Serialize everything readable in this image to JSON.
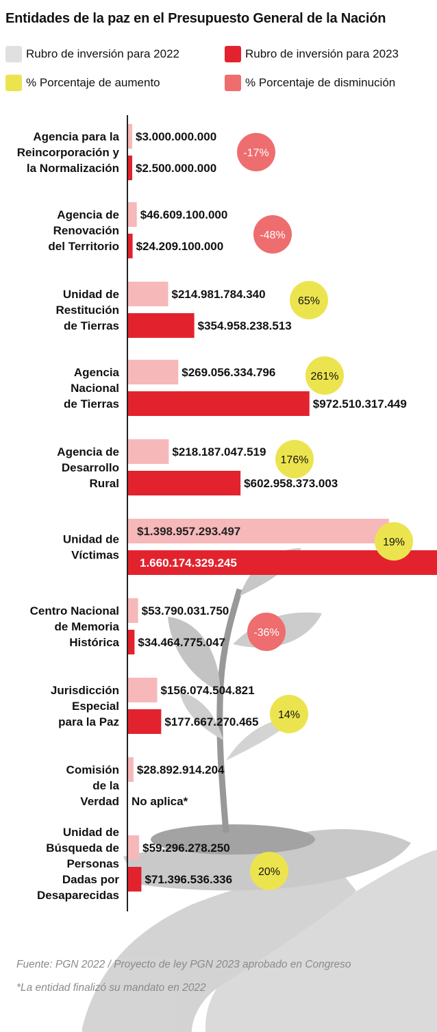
{
  "title": "Entidades de la paz en el Presupuesto General de la Nación",
  "legend": [
    {
      "label": "Rubro de inversión para 2022",
      "color": "#e0e0e0",
      "shape": "square"
    },
    {
      "label": "Rubro de inversión para 2023",
      "color": "#e2232e",
      "shape": "square"
    },
    {
      "label": "% Porcentaje de aumento",
      "color": "#ece44e",
      "shape": "square"
    },
    {
      "label": "% Porcentaje de disminución",
      "color": "#ee6d6f",
      "shape": "square"
    }
  ],
  "colors": {
    "bar_2022": "#f7b8ba",
    "bar_2023": "#e2232e",
    "increase": "#ece44e",
    "decrease": "#ee6d6f",
    "axis": "#222222"
  },
  "chart_data": {
    "type": "bar",
    "orientation": "horizontal",
    "title": "Entidades de la paz en el Presupuesto General de la Nación",
    "categories": [
      "Agencia para la Reincorporación y la Normalización",
      "Agencia de Renovación del Territorio",
      "Unidad de Restitución de Tierras",
      "Agencia Nacional de Tierras",
      "Agencia de Desarrollo Rural",
      "Unidad de Víctimas",
      "Centro Nacional de Memoria Histórica",
      "Jurisdicción Especial para la Paz",
      "Comisión de la Verdad",
      "Unidad de Búsqueda de Personas Dadas por Desaparecidas"
    ],
    "category_lines": [
      [
        "Agencia para la",
        "Reincorporación y",
        "la Normalización"
      ],
      [
        "Agencia de",
        "Renovación",
        "del Territorio"
      ],
      [
        "Unidad de",
        "Restitución",
        "de Tierras"
      ],
      [
        "Agencia",
        "Nacional",
        "de Tierras"
      ],
      [
        "Agencia de",
        "Desarrollo",
        "Rural"
      ],
      [
        "Unidad de",
        "Víctimas"
      ],
      [
        "Centro Nacional",
        "de Memoria",
        "Histórica"
      ],
      [
        "Jurisdicción",
        "Especial",
        "para la Paz"
      ],
      [
        "Comisión",
        "de la",
        "Verdad"
      ],
      [
        "Unidad de",
        "Búsqueda de",
        "Personas",
        "Dadas por",
        "Desaparecidas"
      ]
    ],
    "series": [
      {
        "name": "Rubro de inversión para 2022",
        "values": [
          3000000000,
          46609100000,
          214981784340,
          269056334796,
          218187047519,
          1398957293497,
          53790031750,
          156074504821,
          28892914204,
          59296278250
        ],
        "labels": [
          "$3.000.000.000",
          "$46.609.100.000",
          "$214.981.784.340",
          "$269.056.334.796",
          "$218.187.047.519",
          "$1.398.957.293.497",
          "$53.790.031.750",
          "$156.074.504.821",
          "$28.892.914.204",
          "$59.296.278.250"
        ]
      },
      {
        "name": "Rubro de inversión para 2023",
        "values": [
          2500000000,
          24209100000,
          354958238513,
          972510317449,
          602958373003,
          1660174329245,
          34464775047,
          177667270465,
          null,
          71396536336
        ],
        "labels": [
          "$2.500.000.000",
          "$24.209.100.000",
          "$354.958.238.513",
          "$972.510.317.449",
          "$602.958.373.003",
          "1.660.174.329.245",
          "$34.464.775.047",
          "$177.667.270.465",
          "No aplica*",
          "$71.396.536.336"
        ]
      }
    ],
    "percent_change": [
      "-17%",
      "-48%",
      "65%",
      "261%",
      "176%",
      "19%",
      "-36%",
      "14%",
      null,
      "20%"
    ],
    "xlim": [
      0,
      1660174329245
    ]
  },
  "footnotes": {
    "source": "Fuente: PGN 2022 / Proyecto de ley PGN 2023 aprobado en Congreso",
    "note": "*La entidad finalizó su mandato en 2022"
  }
}
